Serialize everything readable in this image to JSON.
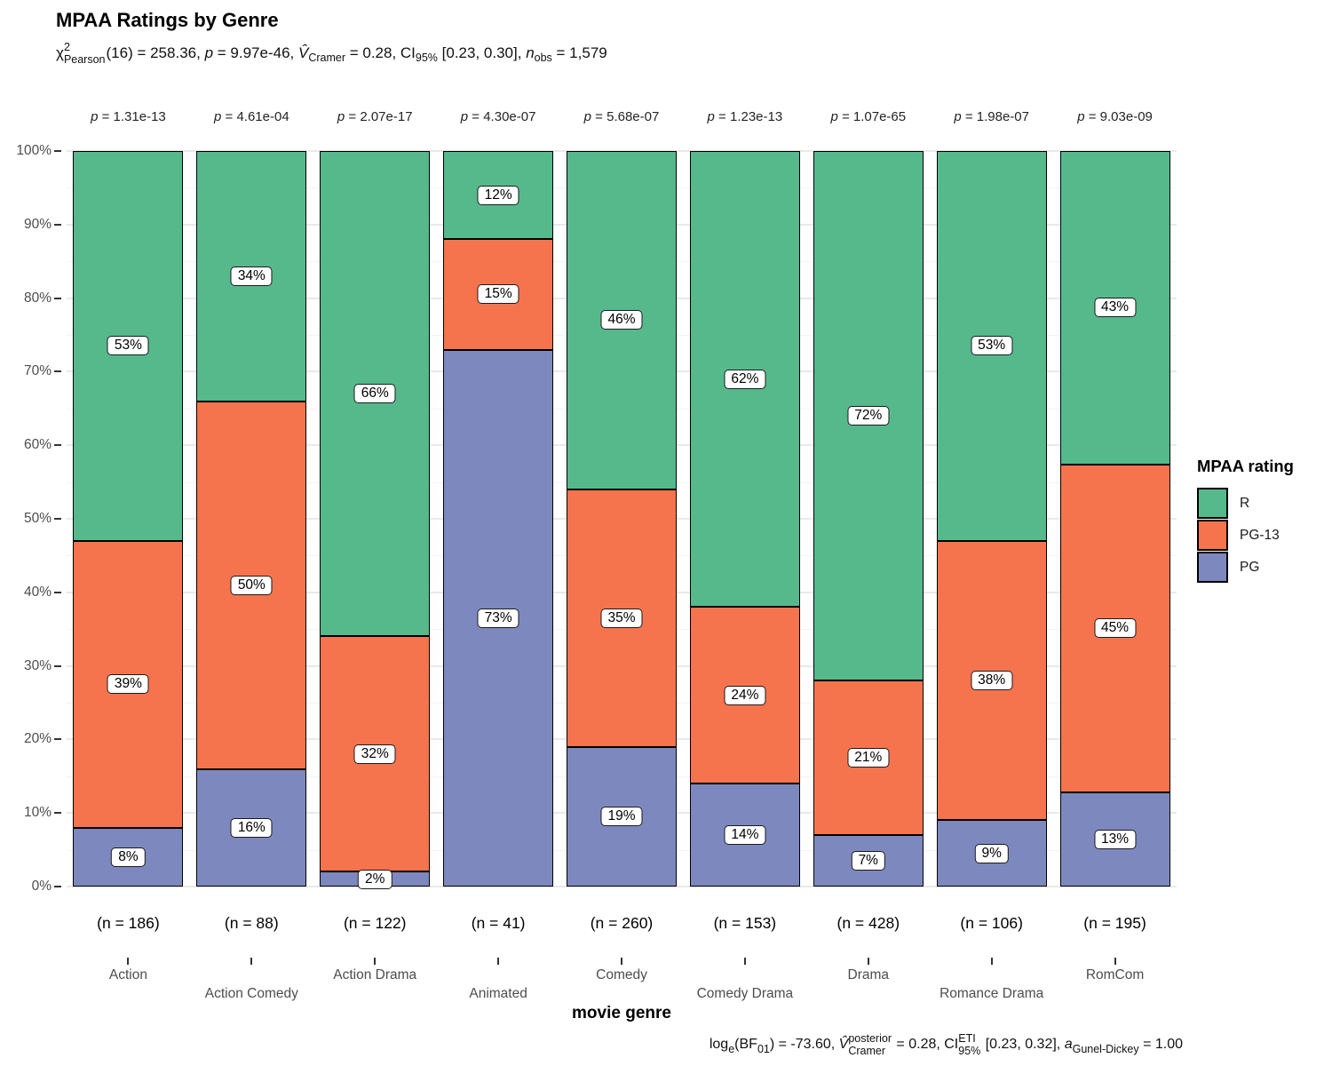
{
  "title": "MPAA Ratings by Genre",
  "subtitle_parts": [
    {
      "type": "t",
      "t": "χ"
    },
    {
      "type": "stack",
      "up": "2",
      "down": "Pearson"
    },
    {
      "type": "t",
      "t": "(16) = 258.36, "
    },
    {
      "type": "i",
      "t": "p"
    },
    {
      "type": "t",
      "t": " = 9.97e-46, "
    },
    {
      "type": "i",
      "t": "V̂"
    },
    {
      "type": "sub",
      "t": "Cramer"
    },
    {
      "type": "t",
      "t": " = 0.28, CI"
    },
    {
      "type": "sub",
      "t": "95%"
    },
    {
      "type": "t",
      "t": " [0.23, 0.30], "
    },
    {
      "type": "i",
      "t": "n"
    },
    {
      "type": "sub",
      "t": "obs"
    },
    {
      "type": "t",
      "t": " = 1,579"
    }
  ],
  "caption_parts": [
    {
      "type": "t",
      "t": "log"
    },
    {
      "type": "sub",
      "t": "e"
    },
    {
      "type": "t",
      "t": "(BF"
    },
    {
      "type": "sub",
      "t": "01"
    },
    {
      "type": "t",
      "t": ") = -73.60, "
    },
    {
      "type": "i",
      "t": "V̂"
    },
    {
      "type": "stack",
      "up": "posterior",
      "down": "Cramer"
    },
    {
      "type": "t",
      "t": " = 0.28, CI"
    },
    {
      "type": "stack",
      "up": "ETI",
      "down": "95%"
    },
    {
      "type": "t",
      "t": " [0.23, 0.32], "
    },
    {
      "type": "i",
      "t": "a"
    },
    {
      "type": "sub",
      "t": "Gunel-Dickey"
    },
    {
      "type": "t",
      "t": " = 1.00"
    }
  ],
  "p_symbol": "p",
  "p_equals": " = ",
  "x_axis": {
    "title": "movie genre"
  },
  "y_axis": {
    "tick_labels": [
      "0%",
      "10%",
      "20%",
      "30%",
      "40%",
      "50%",
      "60%",
      "70%",
      "80%",
      "90%",
      "100%"
    ]
  },
  "legend": {
    "title": "MPAA rating",
    "items": [
      {
        "label": "R",
        "color": "#56B98C"
      },
      {
        "label": "PG-13",
        "color": "#F5744E"
      },
      {
        "label": "PG",
        "color": "#7D89BE"
      }
    ]
  },
  "chart_data": {
    "type": "bar",
    "subtype": "stacked-100-percent",
    "title": "MPAA Ratings by Genre",
    "xlabel": "movie genre",
    "ylabel": "",
    "ylim": [
      0,
      100
    ],
    "grid": true,
    "legend_position": "right",
    "categories": [
      "Action",
      "Action Comedy",
      "Action Drama",
      "Animated",
      "Comedy",
      "Comedy Drama",
      "Drama",
      "Romance Drama",
      "RomCom"
    ],
    "series": [
      {
        "name": "R",
        "color": "#56B98C",
        "values": [
          53,
          34,
          66,
          12,
          46,
          62,
          72,
          53,
          43
        ]
      },
      {
        "name": "PG-13",
        "color": "#F5744E",
        "values": [
          39,
          50,
          32,
          15,
          35,
          24,
          21,
          38,
          45
        ]
      },
      {
        "name": "PG",
        "color": "#7D89BE",
        "values": [
          8,
          16,
          2,
          73,
          19,
          14,
          7,
          9,
          13
        ]
      }
    ],
    "n_labels": [
      "(n = 186)",
      "(n = 88)",
      "(n = 122)",
      "(n = 41)",
      "(n = 260)",
      "(n = 153)",
      "(n = 428)",
      "(n = 106)",
      "(n = 195)"
    ],
    "p_values": [
      "1.31e-13",
      "4.61e-04",
      "2.07e-17",
      "4.30e-07",
      "5.68e-07",
      "1.23e-13",
      "1.07e-65",
      "1.98e-07",
      "9.03e-09"
    ],
    "bars": [
      {
        "genre": "Action",
        "n_label": "(n = 186)",
        "p_value": "1.31e-13",
        "segments": [
          {
            "rating": "PG",
            "label": "8%",
            "height": 8
          },
          {
            "rating": "PG-13",
            "label": "39%",
            "height": 39
          },
          {
            "rating": "R",
            "label": "53%",
            "height": 53
          }
        ]
      },
      {
        "genre": "Action Comedy",
        "n_label": "(n = 88)",
        "p_value": "4.61e-04",
        "segments": [
          {
            "rating": "PG",
            "label": "16%",
            "height": 16
          },
          {
            "rating": "PG-13",
            "label": "50%",
            "height": 50
          },
          {
            "rating": "R",
            "label": "34%",
            "height": 34
          }
        ]
      },
      {
        "genre": "Action Drama",
        "n_label": "(n = 122)",
        "p_value": "2.07e-17",
        "segments": [
          {
            "rating": "PG",
            "label": "2%",
            "height": 2
          },
          {
            "rating": "PG-13",
            "label": "32%",
            "height": 32
          },
          {
            "rating": "R",
            "label": "66%",
            "height": 66
          }
        ]
      },
      {
        "genre": "Animated",
        "n_label": "(n = 41)",
        "p_value": "4.30e-07",
        "segments": [
          {
            "rating": "PG",
            "label": "73%",
            "height": 73
          },
          {
            "rating": "PG-13",
            "label": "15%",
            "height": 15
          },
          {
            "rating": "R",
            "label": "12%",
            "height": 12
          }
        ]
      },
      {
        "genre": "Comedy",
        "n_label": "(n = 260)",
        "p_value": "5.68e-07",
        "segments": [
          {
            "rating": "PG",
            "label": "19%",
            "height": 19
          },
          {
            "rating": "PG-13",
            "label": "35%",
            "height": 35
          },
          {
            "rating": "R",
            "label": "46%",
            "height": 46
          }
        ]
      },
      {
        "genre": "Comedy Drama",
        "n_label": "(n = 153)",
        "p_value": "1.23e-13",
        "segments": [
          {
            "rating": "PG",
            "label": "14%",
            "height": 14
          },
          {
            "rating": "PG-13",
            "label": "24%",
            "height": 24
          },
          {
            "rating": "R",
            "label": "62%",
            "height": 62
          }
        ]
      },
      {
        "genre": "Drama",
        "n_label": "(n = 428)",
        "p_value": "1.07e-65",
        "segments": [
          {
            "rating": "PG",
            "label": "7%",
            "height": 7
          },
          {
            "rating": "PG-13",
            "label": "21%",
            "height": 21
          },
          {
            "rating": "R",
            "label": "72%",
            "height": 72
          }
        ]
      },
      {
        "genre": "Romance Drama",
        "n_label": "(n = 106)",
        "p_value": "1.98e-07",
        "segments": [
          {
            "rating": "PG",
            "label": "9%",
            "height": 9
          },
          {
            "rating": "PG-13",
            "label": "38%",
            "height": 38
          },
          {
            "rating": "R",
            "label": "53%",
            "height": 53
          }
        ]
      },
      {
        "genre": "RomCom",
        "n_label": "(n = 195)",
        "p_value": "9.03e-09",
        "segments": [
          {
            "rating": "PG",
            "label": "13%",
            "height": 12.8
          },
          {
            "rating": "PG-13",
            "label": "45%",
            "height": 44.6
          },
          {
            "rating": "R",
            "label": "43%",
            "height": 42.6
          }
        ]
      }
    ]
  }
}
